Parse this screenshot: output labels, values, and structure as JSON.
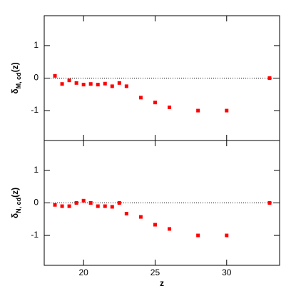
{
  "chart_data": [
    {
      "type": "scatter",
      "ylabel": "δ",
      "ylabel_sub": "M, cd",
      "ylabel_suffix": "(z)",
      "x": [
        18,
        18.5,
        19,
        19.5,
        20,
        20.5,
        21,
        21.5,
        22,
        22.5,
        23,
        24,
        25,
        26,
        28,
        30,
        33
      ],
      "series": [
        {
          "color": "#ff0000",
          "values": [
            0.07,
            -0.18,
            -0.07,
            -0.15,
            -0.2,
            -0.18,
            -0.2,
            -0.17,
            -0.25,
            -0.15,
            -0.25,
            -0.6,
            -0.75,
            -0.9,
            -1,
            -1,
            0
          ]
        }
      ],
      "xlim": [
        17.25,
        33.7
      ],
      "xticks": [
        20,
        25,
        30
      ],
      "xtick_labels": false,
      "ylim": [
        -1.92,
        1.92
      ],
      "yticks": [
        -1,
        0,
        1
      ],
      "hline": 0
    },
    {
      "type": "scatter",
      "ylabel": "δ",
      "ylabel_sub": "N, cd",
      "ylabel_suffix": "(z)",
      "xlabel": "z",
      "x": [
        18,
        18.5,
        19,
        19.5,
        20,
        20.5,
        21,
        21.5,
        22,
        22.5,
        23,
        24,
        25,
        26,
        28,
        30,
        33
      ],
      "series": [
        {
          "color": "#ff0000",
          "values": [
            -0.06,
            -0.1,
            -0.1,
            0,
            0.07,
            0,
            -0.1,
            -0.1,
            -0.12,
            0,
            -0.33,
            -0.43,
            -0.67,
            -0.8,
            -1,
            -1,
            0
          ]
        }
      ],
      "xlim": [
        17.25,
        33.7
      ],
      "xticks": [
        20,
        25,
        30
      ],
      "xtick_labels": true,
      "ylim": [
        -1.92,
        1.92
      ],
      "yticks": [
        -1,
        0,
        1
      ],
      "hline": 0
    }
  ]
}
